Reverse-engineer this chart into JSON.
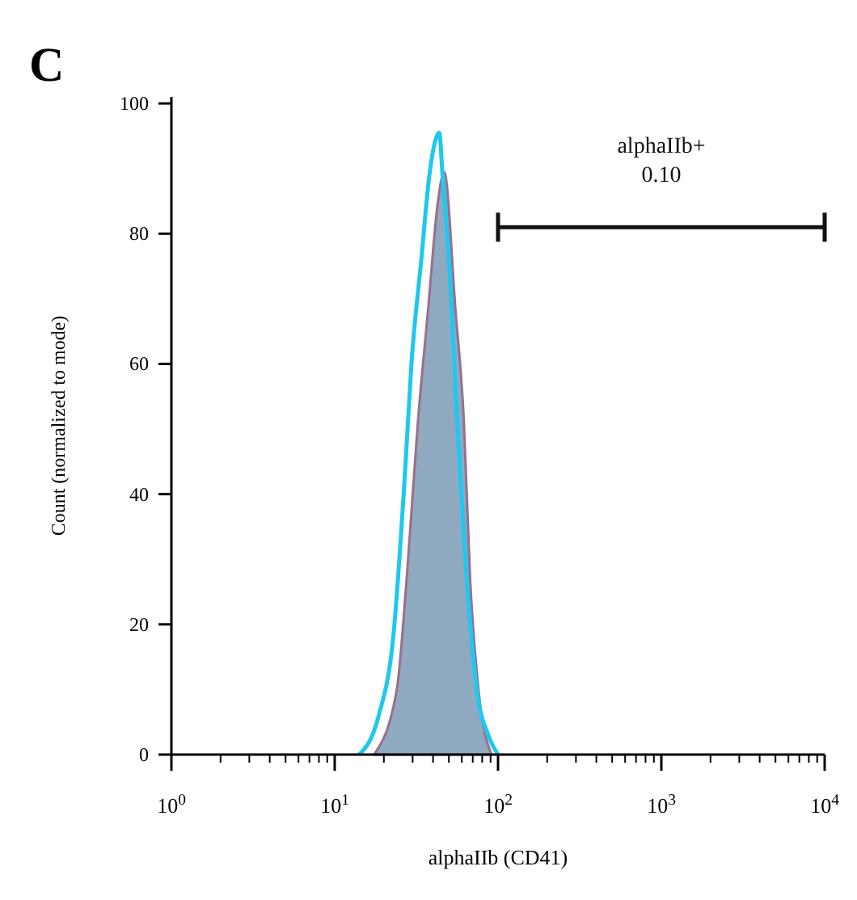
{
  "chart_data": {
    "type": "area",
    "title": "C",
    "xlabel": "alphaIIb (CD41)",
    "ylabel": "Count (normalized to mode)",
    "log": "x",
    "xlim": [
      1,
      10000
    ],
    "ylim": [
      0,
      101
    ],
    "xticks": [
      {
        "value": 1,
        "label": "10$^{0}$"
      },
      {
        "value": 10,
        "label": "10$^{1}$"
      },
      {
        "value": 100,
        "label": "10$^{2}$"
      },
      {
        "value": 1000,
        "label": "10$^{3}$"
      },
      {
        "value": 10000,
        "label": "10$^{4}$"
      }
    ],
    "yticks": [
      0,
      20,
      40,
      60,
      80,
      100
    ],
    "series": [
      {
        "color": "#8fa9c0",
        "x": [
          17.4,
          24,
          27.5,
          32.4,
          37.2,
          42.7,
          46.8,
          55,
          61.7,
          67.6,
          75.9,
          91.2
        ],
        "values": [
          0,
          10,
          26.6,
          51.5,
          68,
          84.6,
          89.5,
          68,
          51.5,
          26.6,
          10,
          0
        ]
      },
      {
        "type": "line",
        "color": "#1ec8f0",
        "x": [
          14.1,
          18.6,
          22.9,
          26.9,
          29.5,
          33.9,
          38,
          43.7,
          45.7,
          50.1,
          56.2,
          64.6,
          74.1,
          87.1,
          100
        ],
        "values": [
          0,
          6,
          18.4,
          43,
          60,
          76,
          89,
          95.5,
          89,
          76,
          51.5,
          26.6,
          10,
          3,
          0
        ]
      },
      {
        "type": "line",
        "color": "#111111",
        "x": [
          100,
          10000
        ],
        "values": [
          81,
          81
        ]
      }
    ],
    "annotations": [
      "alphaIIb+",
      "0.10"
    ]
  }
}
